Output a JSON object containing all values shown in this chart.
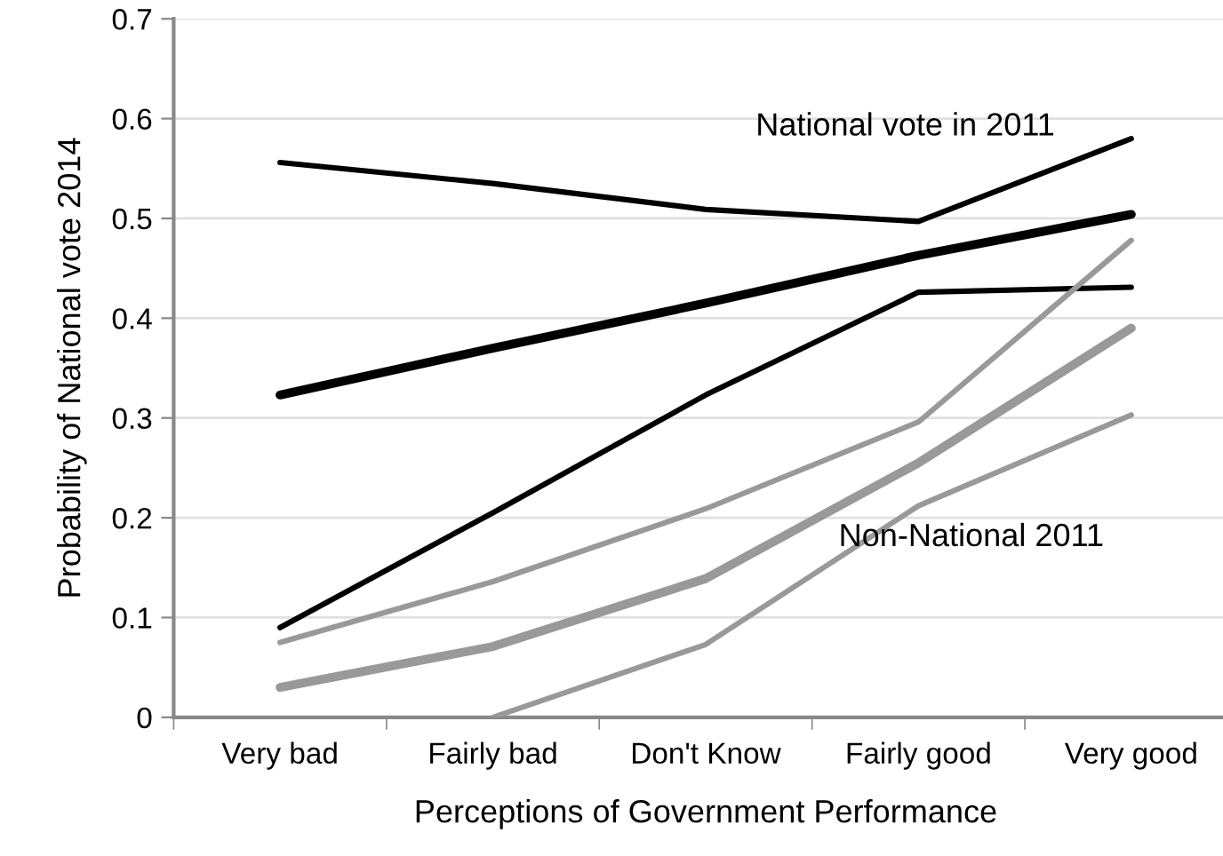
{
  "chart_data": {
    "type": "line",
    "xlabel": "Perceptions of Government Performance",
    "ylabel": "Probability of National vote 2014",
    "categories": [
      "Very bad",
      "Fairly bad",
      "Don't Know",
      "Fairly good",
      "Very good"
    ],
    "series": [
      {
        "color": "#000000",
        "values": [
          0.556,
          0.535,
          0.509,
          0.497,
          0.58
        ]
      },
      {
        "color": "#000000",
        "values": [
          0.323,
          0.37,
          0.415,
          0.463,
          0.504
        ]
      },
      {
        "color": "#000000",
        "values": [
          0.09,
          0.205,
          0.323,
          0.426,
          0.431
        ]
      },
      {
        "color": "#999999",
        "values": [
          0.075,
          0.136,
          0.209,
          0.296,
          0.478
        ]
      },
      {
        "color": "#999999",
        "values": [
          0.03,
          0.071,
          0.139,
          0.255,
          0.39
        ]
      },
      {
        "color": "#999999",
        "values": [
          null,
          0.0,
          0.073,
          0.212,
          0.303
        ]
      }
    ],
    "ylim": [
      0,
      0.7
    ],
    "yticks": [
      0,
      0.1,
      0.2,
      0.3,
      0.4,
      0.5,
      0.6,
      0.7
    ],
    "grid": "y",
    "marker": "none",
    "line_style": "solid",
    "annotations": [
      "National vote in 2011",
      "Non-National 2011"
    ]
  }
}
